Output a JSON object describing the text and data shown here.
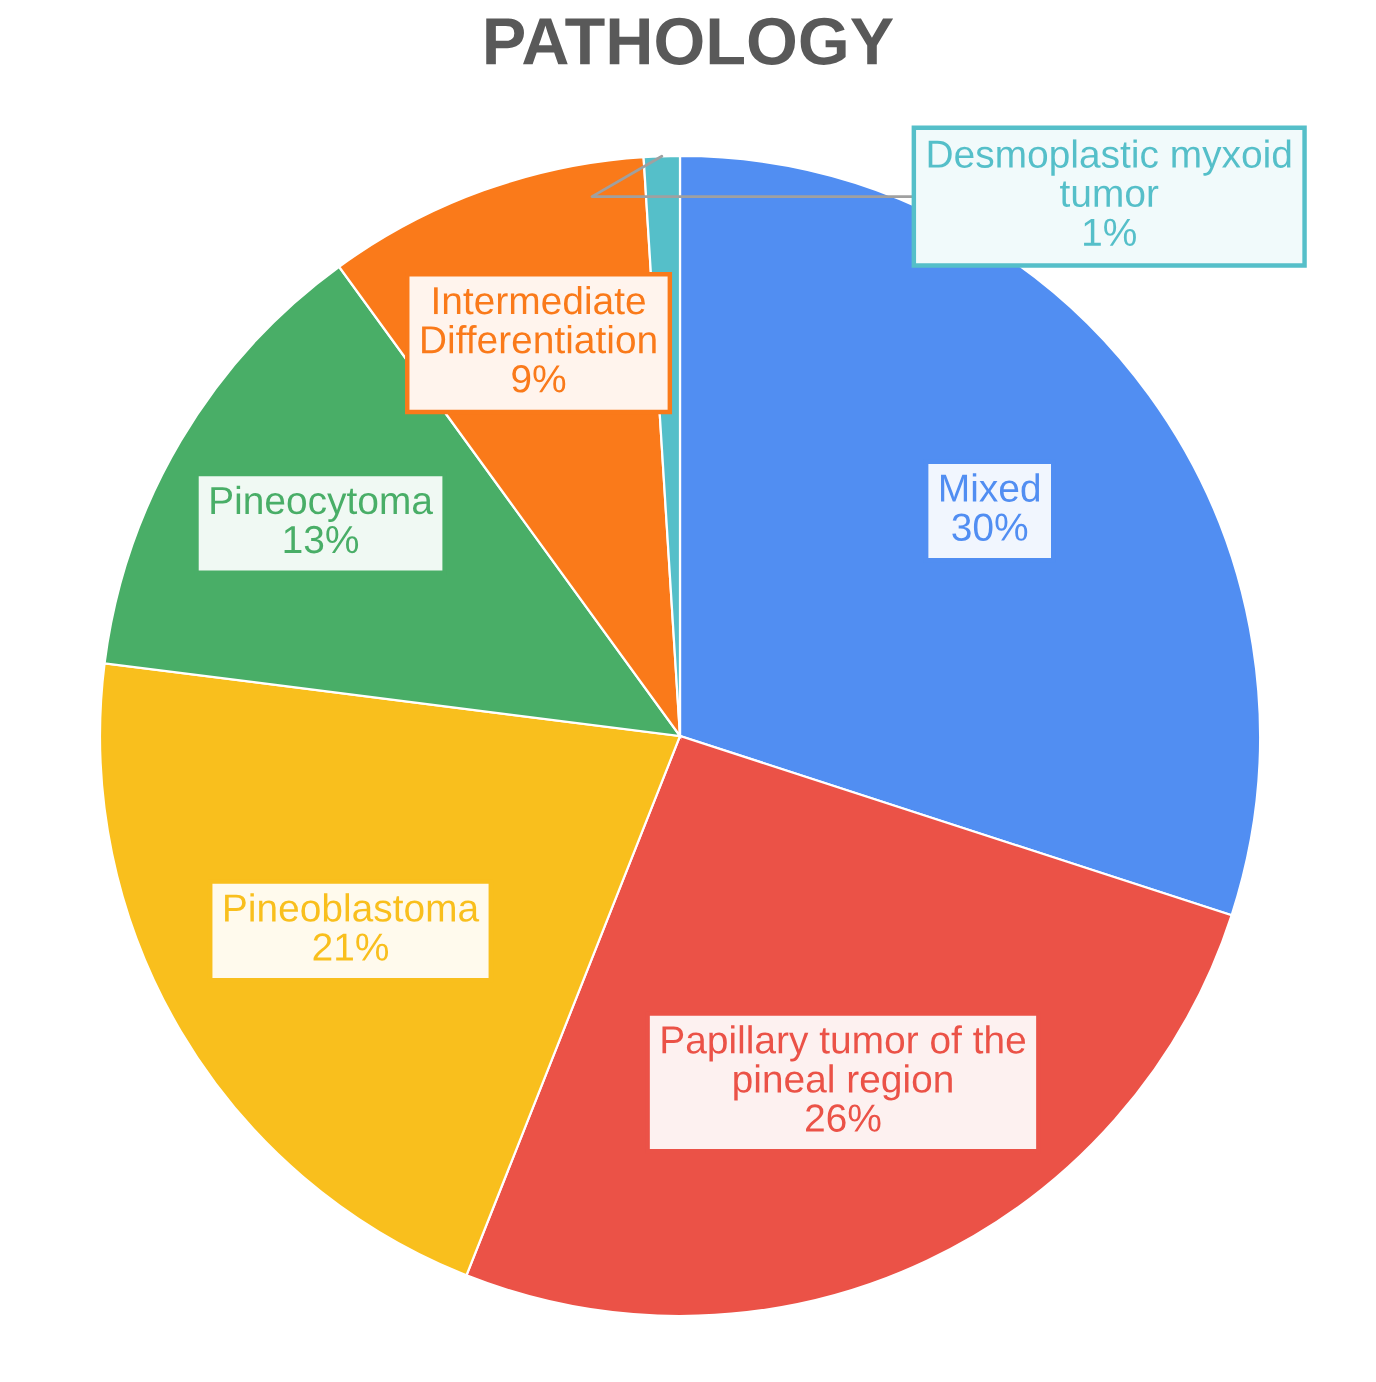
{
  "chart_data": {
    "type": "pie",
    "title": "PATHOLOGY",
    "categories": [
      "Mixed",
      "Papillary tumor of the\npineal region",
      "Pineoblastoma",
      "Pineocytoma",
      "Intermediate\nDifferentiation",
      "Desmoplastic myxoid\ntumor"
    ],
    "values": [
      30,
      26,
      21,
      13,
      9,
      1
    ],
    "value_labels": [
      "30%",
      "26%",
      "21%",
      "13%",
      "9%",
      "1%"
    ],
    "colors": [
      "#518ef2",
      "#eb5247",
      "#f9bf1d",
      "#49ae67",
      "#fa7a1a",
      "#55bfc9"
    ]
  }
}
